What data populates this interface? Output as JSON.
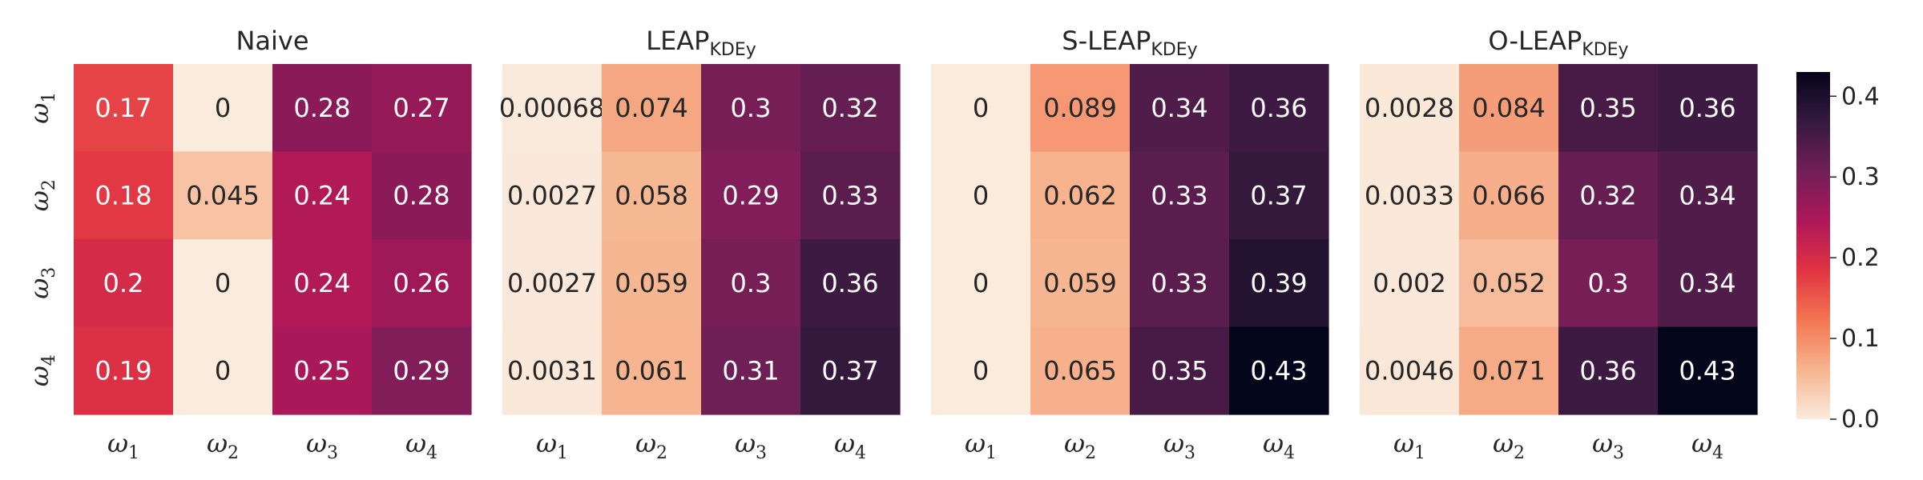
{
  "chart_data": {
    "type": "heatmap",
    "row_labels": [
      {
        "symbol": "ω",
        "sub": "1"
      },
      {
        "symbol": "ω",
        "sub": "2"
      },
      {
        "symbol": "ω",
        "sub": "3"
      },
      {
        "symbol": "ω",
        "sub": "4"
      }
    ],
    "col_labels": [
      {
        "symbol": "ω",
        "sub": "1"
      },
      {
        "symbol": "ω",
        "sub": "2"
      },
      {
        "symbol": "ω",
        "sub": "3"
      },
      {
        "symbol": "ω",
        "sub": "4"
      }
    ],
    "panels": [
      {
        "title": "Naive",
        "title_sub": "",
        "values": [
          [
            0.17,
            0,
            0.28,
            0.27
          ],
          [
            0.18,
            0.045,
            0.24,
            0.28
          ],
          [
            0.2,
            0,
            0.24,
            0.26
          ],
          [
            0.19,
            0,
            0.25,
            0.29
          ]
        ],
        "labels": [
          [
            "0.17",
            "0",
            "0.28",
            "0.27"
          ],
          [
            "0.18",
            "0.045",
            "0.24",
            "0.28"
          ],
          [
            "0.2",
            "0",
            "0.24",
            "0.26"
          ],
          [
            "0.19",
            "0",
            "0.25",
            "0.29"
          ]
        ]
      },
      {
        "title": "LEAP",
        "title_sub": "KDEy",
        "values": [
          [
            0.00068,
            0.074,
            0.3,
            0.32
          ],
          [
            0.0027,
            0.058,
            0.29,
            0.33
          ],
          [
            0.0027,
            0.059,
            0.3,
            0.36
          ],
          [
            0.0031,
            0.061,
            0.31,
            0.37
          ]
        ],
        "labels": [
          [
            "0.00068",
            "0.074",
            "0.3",
            "0.32"
          ],
          [
            "0.0027",
            "0.058",
            "0.29",
            "0.33"
          ],
          [
            "0.0027",
            "0.059",
            "0.3",
            "0.36"
          ],
          [
            "0.0031",
            "0.061",
            "0.31",
            "0.37"
          ]
        ]
      },
      {
        "title": "S-LEAP",
        "title_sub": "KDEy",
        "values": [
          [
            0,
            0.089,
            0.34,
            0.36
          ],
          [
            0,
            0.062,
            0.33,
            0.37
          ],
          [
            0,
            0.059,
            0.33,
            0.39
          ],
          [
            0,
            0.065,
            0.35,
            0.43
          ]
        ],
        "labels": [
          [
            "0",
            "0.089",
            "0.34",
            "0.36"
          ],
          [
            "0",
            "0.062",
            "0.33",
            "0.37"
          ],
          [
            "0",
            "0.059",
            "0.33",
            "0.39"
          ],
          [
            "0",
            "0.065",
            "0.35",
            "0.43"
          ]
        ]
      },
      {
        "title": "O-LEAP",
        "title_sub": "KDEy",
        "values": [
          [
            0.0028,
            0.084,
            0.35,
            0.36
          ],
          [
            0.0033,
            0.066,
            0.32,
            0.34
          ],
          [
            0.002,
            0.052,
            0.3,
            0.34
          ],
          [
            0.0046,
            0.071,
            0.36,
            0.43
          ]
        ],
        "labels": [
          [
            "0.0028",
            "0.084",
            "0.35",
            "0.36"
          ],
          [
            "0.0033",
            "0.066",
            "0.32",
            "0.34"
          ],
          [
            "0.002",
            "0.052",
            "0.3",
            "0.34"
          ],
          [
            "0.0046",
            "0.071",
            "0.36",
            "0.43"
          ]
        ]
      }
    ],
    "colorbar": {
      "min": 0.0,
      "max": 0.43,
      "ticks": [
        0.0,
        0.1,
        0.2,
        0.3,
        0.4
      ],
      "tick_labels": [
        "0.0",
        "0.1",
        "0.2",
        "0.3",
        "0.4"
      ],
      "colormap": "rocket_r",
      "stops": [
        "#faebdd",
        "#f6b48f",
        "#f37651",
        "#e13342",
        "#ad1759",
        "#701f57",
        "#35193e",
        "#03051a"
      ]
    },
    "grid": false,
    "legend": "colorbar-right"
  }
}
